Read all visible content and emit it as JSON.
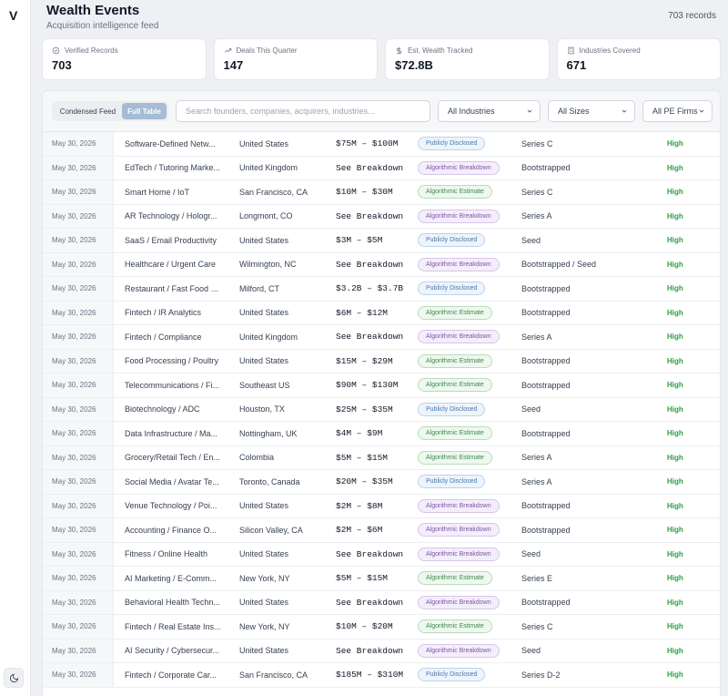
{
  "app": {
    "logo": "V"
  },
  "header": {
    "title": "Wealth Events",
    "subtitle": "Acquisition intelligence feed",
    "record_count": "703 records"
  },
  "stats": [
    {
      "label": "Verified Records",
      "value": "703",
      "icon": "check-circle-icon"
    },
    {
      "label": "Deals This Quarter",
      "value": "147",
      "icon": "trend-icon"
    },
    {
      "label": "Est. Wealth Tracked",
      "value": "$72.8B",
      "icon": "dollar-icon"
    },
    {
      "label": "Industries Covered",
      "value": "671",
      "icon": "building-icon"
    }
  ],
  "toolbar": {
    "view_condensed": "Condensed Feed",
    "view_full": "Full Table",
    "search_placeholder": "Search founders, companies, acquirers, industries...",
    "industry_filter": "All Industries",
    "size_filter": "All Sizes",
    "pe_filter": "All PE Firms"
  },
  "badge_colors": {
    "publicly_disclosed": "#4a7ab0",
    "algorithmic_breakdown": "#7b55a8",
    "algorithmic_estimate": "#3c8a4c"
  },
  "rows": [
    {
      "date": "May 30, 2026",
      "industry": "Software-Defined Netw...",
      "location": "United States",
      "value": "$75M – $100M",
      "source": "Publicly Disclosed",
      "stage": "Series C",
      "confidence": "High"
    },
    {
      "date": "May 30, 2026",
      "industry": "EdTech / Tutoring Marke...",
      "location": "United Kingdom",
      "value": "See Breakdown",
      "source": "Algorithmic Breakdown",
      "stage": "Bootstrapped",
      "confidence": "High"
    },
    {
      "date": "May 30, 2026",
      "industry": "Smart Home / IoT",
      "location": "San Francisco, CA",
      "value": "$10M – $30M",
      "source": "Algorithmic Estimate",
      "stage": "Series C",
      "confidence": "High"
    },
    {
      "date": "May 30, 2026",
      "industry": "AR Technology / Hologr...",
      "location": "Longmont, CO",
      "value": "See Breakdown",
      "source": "Algorithmic Breakdown",
      "stage": "Series A",
      "confidence": "High"
    },
    {
      "date": "May 30, 2026",
      "industry": "SaaS / Email Productivity",
      "location": "United States",
      "value": "$3M – $5M",
      "source": "Publicly Disclosed",
      "stage": "Seed",
      "confidence": "High"
    },
    {
      "date": "May 30, 2026",
      "industry": "Healthcare / Urgent Care",
      "location": "Wilmington, NC",
      "value": "See Breakdown",
      "source": "Algorithmic Breakdown",
      "stage": "Bootstrapped / Seed",
      "confidence": "High"
    },
    {
      "date": "May 30, 2026",
      "industry": "Restaurant / Fast Food F...",
      "location": "Milford, CT",
      "value": "$3.2B – $3.7B",
      "source": "Publicly Disclosed",
      "stage": "Bootstrapped",
      "confidence": "High"
    },
    {
      "date": "May 30, 2026",
      "industry": "Fintech / IR Analytics",
      "location": "United States",
      "value": "$6M – $12M",
      "source": "Algorithmic Estimate",
      "stage": "Bootstrapped",
      "confidence": "High"
    },
    {
      "date": "May 30, 2026",
      "industry": "Fintech / Compliance",
      "location": "United Kingdom",
      "value": "See Breakdown",
      "source": "Algorithmic Breakdown",
      "stage": "Series A",
      "confidence": "High"
    },
    {
      "date": "May 30, 2026",
      "industry": "Food Processing / Poultry",
      "location": "United States",
      "value": "$15M – $29M",
      "source": "Algorithmic Estimate",
      "stage": "Bootstrapped",
      "confidence": "High"
    },
    {
      "date": "May 30, 2026",
      "industry": "Telecommunications / Fi...",
      "location": "Southeast US",
      "value": "$90M – $130M",
      "source": "Algorithmic Estimate",
      "stage": "Bootstrapped",
      "confidence": "High"
    },
    {
      "date": "May 30, 2026",
      "industry": "Biotechnology / ADC",
      "location": "Houston, TX",
      "value": "$25M – $35M",
      "source": "Publicly Disclosed",
      "stage": "Seed",
      "confidence": "High"
    },
    {
      "date": "May 30, 2026",
      "industry": "Data Infrastructure / Ma...",
      "location": "Nottingham, UK",
      "value": "$4M – $9M",
      "source": "Algorithmic Estimate",
      "stage": "Bootstrapped",
      "confidence": "High"
    },
    {
      "date": "May 30, 2026",
      "industry": "Grocery/Retail Tech / En...",
      "location": "Colombia",
      "value": "$5M – $15M",
      "source": "Algorithmic Estimate",
      "stage": "Series A",
      "confidence": "High"
    },
    {
      "date": "May 30, 2026",
      "industry": "Social Media / Avatar Te...",
      "location": "Toronto, Canada",
      "value": "$20M – $35M",
      "source": "Publicly Disclosed",
      "stage": "Series A",
      "confidence": "High"
    },
    {
      "date": "May 30, 2026",
      "industry": "Venue Technology / Poi...",
      "location": "United States",
      "value": "$2M – $8M",
      "source": "Algorithmic Breakdown",
      "stage": "Bootstrapped",
      "confidence": "High"
    },
    {
      "date": "May 30, 2026",
      "industry": "Accounting / Finance O...",
      "location": "Silicon Valley, CA",
      "value": "$2M – $6M",
      "source": "Algorithmic Breakdown",
      "stage": "Bootstrapped",
      "confidence": "High"
    },
    {
      "date": "May 30, 2026",
      "industry": "Fitness / Online Health",
      "location": "United States",
      "value": "See Breakdown",
      "source": "Algorithmic Breakdown",
      "stage": "Seed",
      "confidence": "High"
    },
    {
      "date": "May 30, 2026",
      "industry": "AI Marketing / E-Comm...",
      "location": "New York, NY",
      "value": "$5M – $15M",
      "source": "Algorithmic Estimate",
      "stage": "Series E",
      "confidence": "High"
    },
    {
      "date": "May 30, 2026",
      "industry": "Behavioral Health Techn...",
      "location": "United States",
      "value": "See Breakdown",
      "source": "Algorithmic Breakdown",
      "stage": "Bootstrapped",
      "confidence": "High"
    },
    {
      "date": "May 30, 2026",
      "industry": "Fintech / Real Estate Ins...",
      "location": "New York, NY",
      "value": "$10M – $20M",
      "source": "Algorithmic Estimate",
      "stage": "Series C",
      "confidence": "High"
    },
    {
      "date": "May 30, 2026",
      "industry": "AI Security / Cybersecur...",
      "location": "United States",
      "value": "See Breakdown",
      "source": "Algorithmic Breakdown",
      "stage": "Seed",
      "confidence": "High"
    },
    {
      "date": "May 30, 2026",
      "industry": "Fintech / Corporate Car...",
      "location": "San Francisco, CA",
      "value": "$185M – $310M",
      "source": "Publicly Disclosed",
      "stage": "Series D-2",
      "confidence": "High"
    }
  ]
}
